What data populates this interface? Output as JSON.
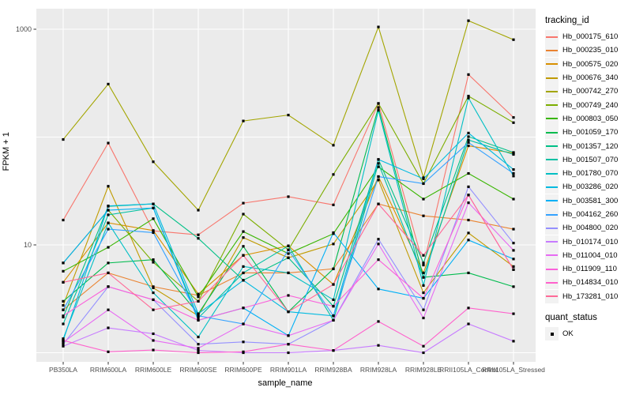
{
  "figure": {
    "background": "#FFFFFF",
    "panel_background": "#EBEBEB",
    "grid_color": "#FFFFFF",
    "point_color": "#000000",
    "tick_color": "#333333",
    "tick_label_color": "#4D4D4D"
  },
  "axes": {
    "x_title": "sample_name",
    "y_title": "FPKM + 1"
  },
  "legend": {
    "tracking_title": "tracking_id",
    "quant_title": "quant_status",
    "quant_items": [
      {
        "label": "OK"
      }
    ]
  },
  "chart_data": {
    "type": "line",
    "title": "",
    "xlabel": "sample_name",
    "ylabel": "FPKM + 1",
    "y_scale": "log10",
    "ylim": [
      1,
      1500
    ],
    "grid": true,
    "legend_position": "right",
    "y_ticks": [
      {
        "value": 10,
        "label": "10"
      },
      {
        "value": 1000,
        "label": "1000"
      }
    ],
    "gridlines_at": [
      1,
      10,
      100,
      1000
    ],
    "point_shape": "square",
    "quant_status": "OK",
    "categories": [
      "PB350LA",
      "RRIM600LA",
      "RRIM600LE",
      "RRIM600SE",
      "RRIM600PE",
      "RRIM901LA",
      "RRIM928BA",
      "RRIM928LA",
      "RRIM928LE",
      "RRII105LA_Control",
      "RRII105LA_Stressed"
    ],
    "series": [
      {
        "name": "Hb_000175_610",
        "color": "#F8766D",
        "values": [
          17,
          88,
          13.5,
          12.4,
          24.4,
          28,
          23.5,
          205,
          6.5,
          380,
          152
        ]
      },
      {
        "name": "Hb_000235_010",
        "color": "#EA8331",
        "values": [
          2.5,
          5.5,
          4.1,
          3.4,
          5.5,
          5.5,
          6.0,
          24,
          18.6,
          17,
          14
        ]
      },
      {
        "name": "Hb_000575_020",
        "color": "#D89000",
        "values": [
          4.5,
          16,
          13.6,
          3.5,
          8.0,
          9.8,
          4.3,
          43,
          5.5,
          83,
          71
        ]
      },
      {
        "name": "Hb_000676_340",
        "color": "#C09B00",
        "values": [
          2.75,
          35,
          4.0,
          2.2,
          11.7,
          7.6,
          10.2,
          40,
          3.6,
          12.9,
          6.3
        ]
      },
      {
        "name": "Hb_000742_270",
        "color": "#A3A500",
        "values": [
          95,
          310,
          59,
          21,
          141,
          160,
          84,
          1050,
          42,
          1200,
          800
        ]
      },
      {
        "name": "Hb_000749_240",
        "color": "#7CAE00",
        "values": [
          6.8,
          21,
          6.9,
          3.0,
          19.3,
          9.0,
          45,
          205,
          37,
          240,
          136
        ]
      },
      {
        "name": "Hb_000803_050",
        "color": "#39B600",
        "values": [
          5.7,
          9.5,
          17.5,
          3.3,
          13.3,
          8.3,
          12.7,
          53,
          26.6,
          46,
          26.6
        ]
      },
      {
        "name": "Hb_001059_170",
        "color": "#00BB4E",
        "values": [
          3.0,
          6.8,
          7.3,
          2.3,
          9.7,
          2.4,
          6.0,
          188,
          5.0,
          5.5,
          4.1
        ]
      },
      {
        "name": "Hb_001357_120",
        "color": "#00C087",
        "values": [
          2.14,
          22.8,
          24,
          11.5,
          4.7,
          7.6,
          2.7,
          62,
          6.8,
          101,
          72
        ]
      },
      {
        "name": "Hb_001507_070",
        "color": "#00C1A3",
        "values": [
          1.85,
          19,
          22,
          2.1,
          5.5,
          9.8,
          2.0,
          57,
          5.0,
          94,
          69
        ]
      },
      {
        "name": "Hb_001780_070",
        "color": "#00BFC4",
        "values": [
          1.35,
          16,
          3.6,
          1.4,
          6.3,
          5.5,
          3.1,
          177,
          4.2,
          230,
          43.5
        ]
      },
      {
        "name": "Hb_003286_020",
        "color": "#00BAE0",
        "values": [
          1.3,
          23,
          24,
          2.3,
          4.7,
          2.4,
          2.2,
          62,
          41,
          109,
          50
        ]
      },
      {
        "name": "Hb_003581_300",
        "color": "#00B0F6",
        "values": [
          6.8,
          21,
          22,
          2.0,
          2.6,
          1.44,
          13,
          3.9,
          3.2,
          11.1,
          7.4
        ]
      },
      {
        "name": "Hb_004162_260",
        "color": "#35A2FF",
        "values": [
          2.5,
          14,
          13,
          2.2,
          1.85,
          9.0,
          2.2,
          43,
          37,
          89,
          46
        ]
      },
      {
        "name": "Hb_004800_020",
        "color": "#9590FF",
        "values": [
          1.2,
          4.1,
          3.1,
          1.2,
          1.26,
          1.2,
          2.0,
          11.3,
          2.5,
          34.6,
          10.4
        ]
      },
      {
        "name": "Hb_010174_010",
        "color": "#C77CFF",
        "values": [
          1.15,
          1.7,
          1.5,
          1.05,
          1.0,
          1.0,
          1.05,
          1.17,
          1.0,
          1.85,
          1.28
        ]
      },
      {
        "name": "Hb_011004_010",
        "color": "#E76BF3",
        "values": [
          1.25,
          2.5,
          1.3,
          1.1,
          1.85,
          1.44,
          2.0,
          10.2,
          2.1,
          24.6,
          8.9
        ]
      },
      {
        "name": "Hb_011909_110",
        "color": "#FA62DB",
        "values": [
          2.2,
          4.1,
          3.1,
          2.0,
          2.6,
          3.4,
          2.7,
          7.3,
          3.2,
          29,
          5.9
        ]
      },
      {
        "name": "Hb_014834_010",
        "color": "#FF61CC",
        "values": [
          1.3,
          1.02,
          1.06,
          1.0,
          1.02,
          1.2,
          1.05,
          1.95,
          1.15,
          2.6,
          2.3
        ]
      },
      {
        "name": "Hb_173281_010",
        "color": "#FF6A98",
        "values": [
          4.5,
          5.5,
          2.5,
          3.0,
          8.0,
          2.4,
          4.3,
          24,
          8.0,
          29,
          5.9
        ]
      }
    ]
  }
}
